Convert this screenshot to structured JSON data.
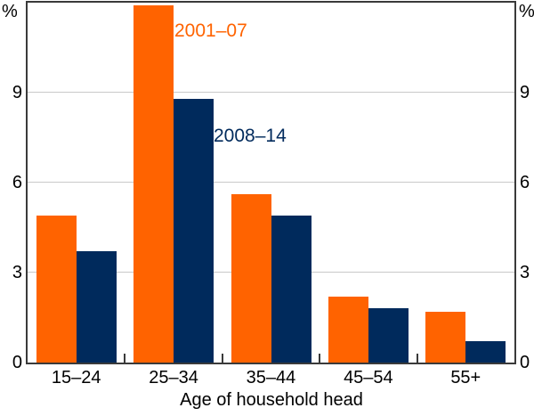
{
  "chart_data": {
    "type": "bar",
    "title": "",
    "xlabel": "Age of household head",
    "ylabel": "%",
    "ylim": [
      0,
      12
    ],
    "yticks": [
      0,
      3,
      6,
      9
    ],
    "grid": true,
    "legend_position": "inline-annotations",
    "categories": [
      "15–24",
      "25–34",
      "35–44",
      "45–54",
      "55+"
    ],
    "series": [
      {
        "name": "2001–07",
        "color": "#FF6300",
        "values": [
          4.9,
          11.9,
          5.6,
          2.2,
          1.7
        ]
      },
      {
        "name": "2008–14",
        "color": "#002A5C",
        "values": [
          3.7,
          8.8,
          4.9,
          1.8,
          0.7
        ]
      }
    ],
    "frame_color": "#3a3a3a",
    "gridline_color": "#c9c9c9"
  }
}
